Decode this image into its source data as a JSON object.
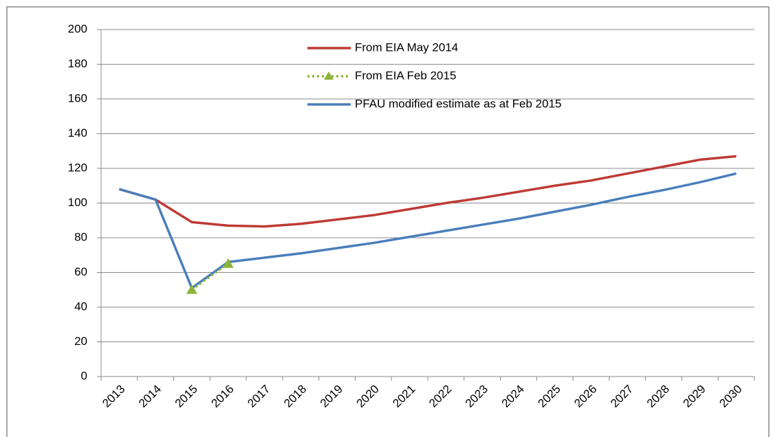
{
  "chart_data": {
    "type": "line",
    "categories": [
      "2013",
      "2014",
      "2015",
      "2016",
      "2017",
      "2018",
      "2019",
      "2020",
      "2021",
      "2022",
      "2023",
      "2024",
      "2025",
      "2026",
      "2027",
      "2028",
      "2029",
      "2030"
    ],
    "series": [
      {
        "name": "From EIA May 2014",
        "color": "#be3a34",
        "values": [
          108,
          102,
          89,
          87,
          86.5,
          88,
          90.5,
          93,
          96.5,
          100,
          103,
          106.5,
          110,
          113,
          117,
          121,
          125,
          127
        ]
      },
      {
        "name": "From EIA Feb 2015",
        "color": "#8db43a",
        "values": [
          null,
          null,
          50,
          65,
          null,
          null,
          null,
          null,
          null,
          null,
          null,
          null,
          null,
          null,
          null,
          null,
          null,
          null
        ]
      },
      {
        "name": "PFAU modified estimate as at Feb 2015",
        "color": "#4a7ebb",
        "values": [
          108,
          102,
          51,
          66,
          68.5,
          71,
          74,
          77,
          80.5,
          84,
          87.5,
          91,
          95,
          99,
          103.5,
          107.5,
          112,
          117
        ]
      }
    ],
    "ylim": [
      0,
      200
    ],
    "yticks": [
      0,
      20,
      40,
      60,
      80,
      100,
      120,
      140,
      160,
      180,
      200
    ],
    "grid": true
  }
}
